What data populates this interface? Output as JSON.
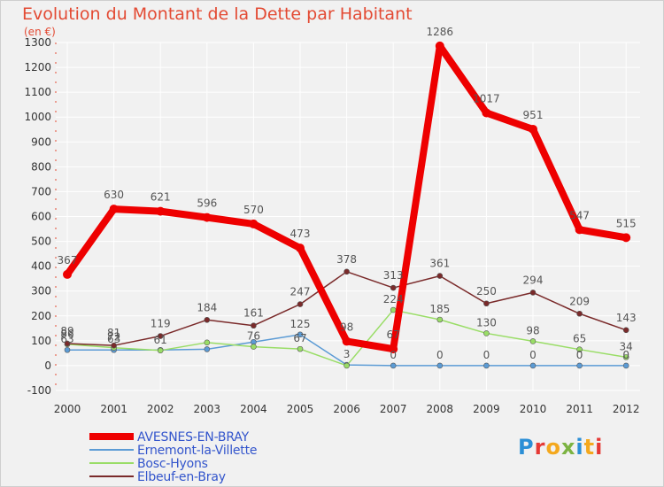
{
  "title": "Evolution du Montant de la Dette par Habitant",
  "unit_label": "(en €)",
  "logo_text": "Proxiti",
  "colors": {
    "title": "#e34a33",
    "axis_label": "#e34a33",
    "legend_text": "#3355cc"
  },
  "chart_data": {
    "type": "line",
    "x": [
      "2000",
      "2001",
      "2002",
      "2003",
      "2004",
      "2005",
      "2006",
      "2007",
      "2008",
      "2009",
      "2010",
      "2011",
      "2012"
    ],
    "ylim": [
      -100,
      1300
    ],
    "yticks": [
      -100,
      0,
      100,
      200,
      300,
      400,
      500,
      600,
      700,
      800,
      900,
      1000,
      1100,
      1200,
      1300
    ],
    "grid": true,
    "legend_position": "bottom-left",
    "series": [
      {
        "name": "AVESNES-EN-BRAY",
        "color": "#ee0000",
        "values": [
          367,
          630,
          621,
          596,
          570,
          473,
          98,
          67,
          1286,
          1017,
          951,
          547,
          515
        ],
        "labels": [
          "367",
          "630",
          "621",
          "596",
          "570",
          "473",
          "98",
          "67",
          "1286",
          "1017",
          "951",
          "547",
          "515"
        ]
      },
      {
        "name": "Ernemont-la-Villette",
        "color": "#5b9bd5",
        "values": [
          63,
          63,
          63,
          66,
          95,
          125,
          3,
          0,
          0,
          0,
          0,
          0,
          0
        ],
        "labels": [
          "63",
          "63",
          "",
          "",
          "",
          "125",
          "3",
          "0",
          "0",
          "0",
          "0",
          "0",
          "0"
        ]
      },
      {
        "name": "Bosc-Hyons",
        "color": "#99dd66",
        "values": [
          86,
          72,
          61,
          93,
          76,
          67,
          0,
          224,
          185,
          130,
          98,
          65,
          34
        ],
        "labels": [
          "86",
          "72",
          "61",
          "",
          "76",
          "67",
          "",
          "224",
          "185",
          "130",
          "98",
          "65",
          "34"
        ]
      },
      {
        "name": "Elbeuf-en-Bray",
        "color": "#7a2a2a",
        "values": [
          89,
          81,
          119,
          184,
          161,
          247,
          378,
          313,
          361,
          250,
          294,
          209,
          143
        ],
        "labels": [
          "89",
          "81",
          "119",
          "184",
          "161",
          "247",
          "378",
          "313",
          "361",
          "250",
          "294",
          "209",
          "143"
        ]
      }
    ]
  },
  "legend": [
    {
      "name": "AVESNES-EN-BRAY"
    },
    {
      "name": "Ernemont-la-Villette"
    },
    {
      "name": "Bosc-Hyons"
    },
    {
      "name": "Elbeuf-en-Bray"
    }
  ]
}
